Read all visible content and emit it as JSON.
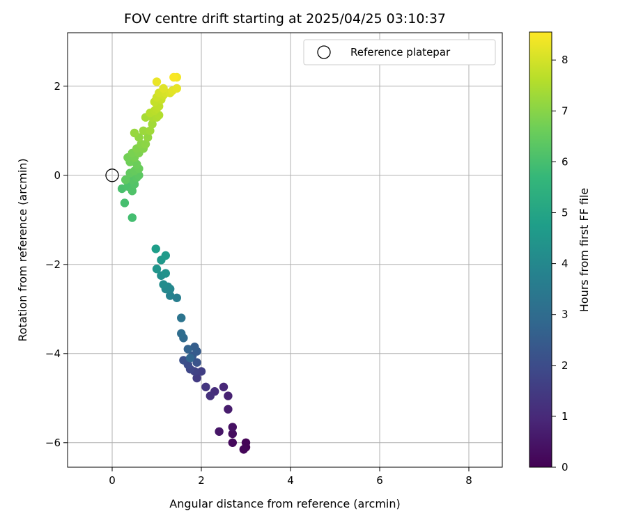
{
  "chart_data": {
    "type": "scatter",
    "title": "FOV centre drift starting at 2025/04/25 03:10:37",
    "xlabel": "Angular distance from reference (arcmin)",
    "ylabel": "Rotation from reference (arcmin)",
    "xlim": [
      -1.0,
      8.75
    ],
    "ylim": [
      -6.55,
      3.2
    ],
    "xticks": [
      0,
      2,
      4,
      6,
      8
    ],
    "yticks": [
      -6,
      -4,
      -2,
      0,
      2
    ],
    "grid": true,
    "legend": {
      "placement": "top-right",
      "entries": [
        "Reference platepar"
      ]
    },
    "reference_point": {
      "x": 0,
      "y": 0
    },
    "colorbar": {
      "label": "Hours from first FF file",
      "range": [
        0,
        8.55
      ],
      "ticks": [
        0,
        1,
        2,
        3,
        4,
        5,
        6,
        7,
        8
      ],
      "colormap": "viridis"
    },
    "colormap_stops": [
      "#440154",
      "#482878",
      "#3e4989",
      "#31688e",
      "#26828e",
      "#1f9e89",
      "#35b779",
      "#6ece58",
      "#b5de2b",
      "#fde725"
    ],
    "series": [
      {
        "points": [
          [
            3.0,
            -6.1,
            0.0
          ],
          [
            3.0,
            -6.0,
            0.05
          ],
          [
            2.95,
            -6.15,
            0.1
          ],
          [
            2.7,
            -6.0,
            0.2
          ],
          [
            2.7,
            -5.8,
            0.3
          ],
          [
            2.7,
            -5.65,
            0.4
          ],
          [
            2.4,
            -5.75,
            0.5
          ],
          [
            2.6,
            -5.25,
            0.65
          ],
          [
            2.6,
            -4.95,
            0.8
          ],
          [
            2.5,
            -4.75,
            0.95
          ],
          [
            2.3,
            -4.85,
            1.1
          ],
          [
            2.2,
            -4.95,
            1.2
          ],
          [
            2.1,
            -4.75,
            1.35
          ],
          [
            1.9,
            -4.55,
            1.5
          ],
          [
            2.0,
            -4.4,
            1.6
          ],
          [
            1.85,
            -4.4,
            1.7
          ],
          [
            1.75,
            -4.35,
            1.85
          ],
          [
            1.7,
            -4.25,
            2.0
          ],
          [
            1.6,
            -4.15,
            2.1
          ],
          [
            1.9,
            -4.2,
            2.2
          ],
          [
            1.8,
            -4.05,
            2.35
          ],
          [
            1.9,
            -3.95,
            2.45
          ],
          [
            1.85,
            -3.85,
            2.55
          ],
          [
            1.7,
            -3.9,
            2.7
          ],
          [
            1.75,
            -4.1,
            2.8
          ],
          [
            1.6,
            -3.65,
            2.95
          ],
          [
            1.55,
            -3.55,
            3.05
          ],
          [
            1.55,
            -3.2,
            3.3
          ],
          [
            1.45,
            -2.75,
            3.65
          ],
          [
            1.3,
            -2.7,
            3.8
          ],
          [
            1.3,
            -2.55,
            3.9
          ],
          [
            1.2,
            -2.55,
            4.0
          ],
          [
            1.25,
            -2.5,
            4.05
          ],
          [
            1.15,
            -2.45,
            4.15
          ],
          [
            1.1,
            -2.25,
            4.25
          ],
          [
            1.2,
            -2.2,
            4.35
          ],
          [
            1.0,
            -2.1,
            4.45
          ],
          [
            1.1,
            -1.9,
            4.55
          ],
          [
            1.2,
            -1.8,
            4.65
          ],
          [
            0.98,
            -1.65,
            4.75
          ],
          [
            0.45,
            -0.95,
            5.95
          ],
          [
            0.28,
            -0.62,
            6.0
          ],
          [
            0.22,
            -0.3,
            6.05
          ],
          [
            0.35,
            -0.25,
            6.1
          ],
          [
            0.45,
            -0.35,
            6.15
          ],
          [
            0.5,
            -0.2,
            6.2
          ],
          [
            0.45,
            -0.1,
            6.25
          ],
          [
            0.55,
            -0.05,
            6.3
          ],
          [
            0.6,
            0.0,
            6.35
          ],
          [
            0.3,
            -0.1,
            6.4
          ],
          [
            0.4,
            0.05,
            6.45
          ],
          [
            0.5,
            0.1,
            6.5
          ],
          [
            0.6,
            0.15,
            6.55
          ],
          [
            0.55,
            0.25,
            6.6
          ],
          [
            0.4,
            0.3,
            6.65
          ],
          [
            0.35,
            0.4,
            6.7
          ],
          [
            0.5,
            0.4,
            6.75
          ],
          [
            0.45,
            0.5,
            6.8
          ],
          [
            0.6,
            0.5,
            6.85
          ],
          [
            0.55,
            0.6,
            6.9
          ],
          [
            0.7,
            0.6,
            6.95
          ],
          [
            0.65,
            0.7,
            7.0
          ],
          [
            0.75,
            0.7,
            7.05
          ],
          [
            0.6,
            0.85,
            7.1
          ],
          [
            0.8,
            0.85,
            7.15
          ],
          [
            0.5,
            0.95,
            7.2
          ],
          [
            0.7,
            1.0,
            7.25
          ],
          [
            0.85,
            1.0,
            7.3
          ],
          [
            0.9,
            1.15,
            7.35
          ],
          [
            0.75,
            1.3,
            7.4
          ],
          [
            0.9,
            1.3,
            7.45
          ],
          [
            1.0,
            1.3,
            7.5
          ],
          [
            1.05,
            1.35,
            7.55
          ],
          [
            0.85,
            1.4,
            7.6
          ],
          [
            0.95,
            1.45,
            7.65
          ],
          [
            1.0,
            1.5,
            7.7
          ],
          [
            1.05,
            1.55,
            7.75
          ],
          [
            0.95,
            1.65,
            7.8
          ],
          [
            1.1,
            1.7,
            7.85
          ],
          [
            1.0,
            1.75,
            7.9
          ],
          [
            1.15,
            1.8,
            7.95
          ],
          [
            1.05,
            1.85,
            8.0
          ],
          [
            1.2,
            1.85,
            8.05
          ],
          [
            1.3,
            1.85,
            8.1
          ],
          [
            1.15,
            1.95,
            8.15
          ],
          [
            1.35,
            1.9,
            8.2
          ],
          [
            1.45,
            1.95,
            8.25
          ],
          [
            1.0,
            2.1,
            8.3
          ],
          [
            1.45,
            2.2,
            8.4
          ],
          [
            1.38,
            2.2,
            8.5
          ]
        ]
      }
    ]
  }
}
